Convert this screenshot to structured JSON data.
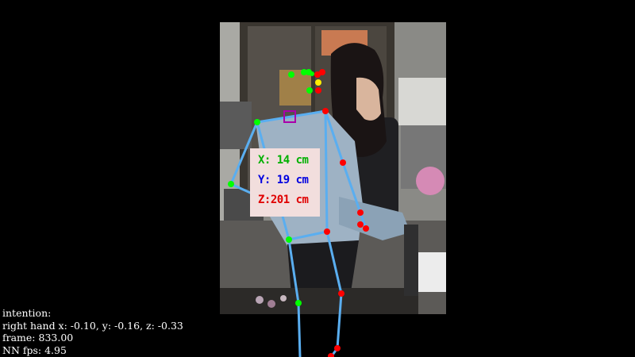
{
  "colors": {
    "background": "#000000",
    "bone": "#5aaef0",
    "joint_left": "#00ff00",
    "joint_right": "#ff0000",
    "face_center": "#ffee00",
    "neck_marker": "#aa00aa",
    "coord_box": "#f2dedd",
    "x_text": "#00b000",
    "y_text": "#0000e0",
    "z_text": "#e00000",
    "info_text": "#ffffff"
  },
  "coordinates": {
    "x_text": "X: 14 cm",
    "y_text": "Y: 19 cm",
    "z_text": "Z:201 cm"
  },
  "info": {
    "intention": "intention:",
    "right_hand": "right hand x: -0.10, y: -0.16, z: -0.33",
    "frame": "frame: 833.00",
    "fps": "NN fps: 4.95"
  },
  "icons": {
    "neck_marker": "square-marker-icon",
    "joints": "keypoint-dot-icon"
  }
}
